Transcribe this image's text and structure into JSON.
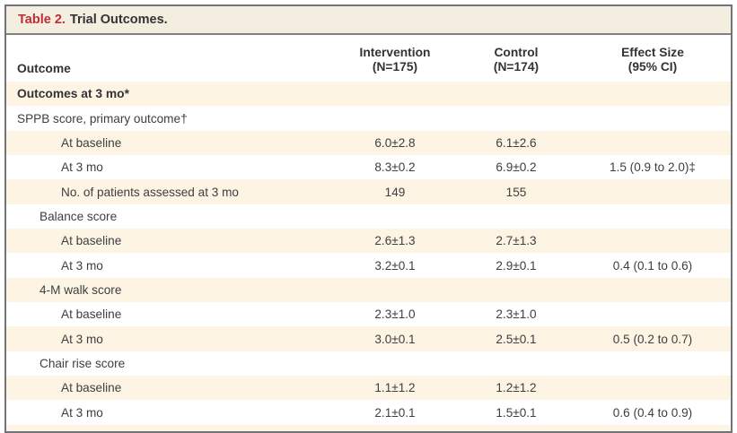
{
  "title": {
    "label": "Table 2.",
    "text": "Trial Outcomes."
  },
  "colors": {
    "accent_red": "#bf2e38",
    "row_stripe_cream": "#fdf4e4",
    "title_bar_bg": "#f3eee0",
    "border_gray": "#717376",
    "text": "#3e3e41"
  },
  "table": {
    "columns": [
      {
        "label": "Outcome",
        "sublabel": ""
      },
      {
        "label": "Intervention",
        "sublabel": "(N=175)"
      },
      {
        "label": "Control",
        "sublabel": "(N=174)"
      },
      {
        "label": "Effect Size",
        "sublabel": "(95% CI)"
      }
    ],
    "rows": [
      {
        "label": "Outcomes at 3 mo*",
        "indent": 0,
        "bold": true,
        "intervention": "",
        "control": "",
        "effect": ""
      },
      {
        "label": "SPPB score, primary outcome†",
        "indent": 0,
        "bold": false,
        "intervention": "",
        "control": "",
        "effect": ""
      },
      {
        "label": "At baseline",
        "indent": 2,
        "bold": false,
        "intervention": "6.0±2.8",
        "control": "6.1±2.6",
        "effect": ""
      },
      {
        "label": "At 3 mo",
        "indent": 2,
        "bold": false,
        "intervention": "8.3±0.2",
        "control": "6.9±0.2",
        "effect": "1.5 (0.9 to 2.0)‡"
      },
      {
        "label": "No. of patients assessed at 3 mo",
        "indent": 2,
        "bold": false,
        "intervention": "149",
        "control": "155",
        "effect": ""
      },
      {
        "label": "Balance score",
        "indent": 1,
        "bold": false,
        "intervention": "",
        "control": "",
        "effect": ""
      },
      {
        "label": "At baseline",
        "indent": 2,
        "bold": false,
        "intervention": "2.6±1.3",
        "control": "2.7±1.3",
        "effect": ""
      },
      {
        "label": "At 3 mo",
        "indent": 2,
        "bold": false,
        "intervention": "3.2±0.1",
        "control": "2.9±0.1",
        "effect": "0.4 (0.1 to 0.6)"
      },
      {
        "label": "4-M walk score",
        "indent": 1,
        "bold": false,
        "intervention": "",
        "control": "",
        "effect": ""
      },
      {
        "label": "At baseline",
        "indent": 2,
        "bold": false,
        "intervention": "2.3±1.0",
        "control": "2.3±1.0",
        "effect": ""
      },
      {
        "label": "At 3 mo",
        "indent": 2,
        "bold": false,
        "intervention": "3.0±0.1",
        "control": "2.5±0.1",
        "effect": "0.5 (0.2 to 0.7)"
      },
      {
        "label": "Chair rise score",
        "indent": 1,
        "bold": false,
        "intervention": "",
        "control": "",
        "effect": ""
      },
      {
        "label": "At baseline",
        "indent": 2,
        "bold": false,
        "intervention": "1.1±1.2",
        "control": "1.2±1.2",
        "effect": ""
      },
      {
        "label": "At 3 mo",
        "indent": 2,
        "bold": false,
        "intervention": "2.1±0.1",
        "control": "1.5±0.1",
        "effect": "0.6 (0.4 to 0.9)"
      }
    ]
  }
}
